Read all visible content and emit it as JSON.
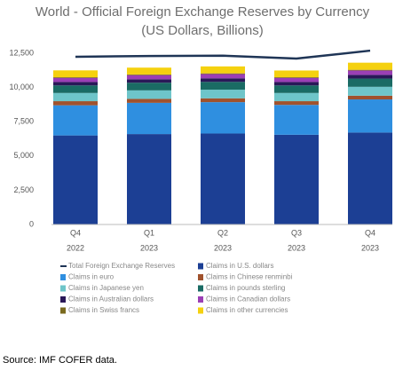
{
  "chart_data": {
    "type": "bar",
    "title": "World - Official Foreign Exchange Reserves by Currency",
    "subtitle": "(US Dollars, Billions)",
    "categories": [
      "Q4",
      "Q1",
      "Q2",
      "Q3",
      "Q4"
    ],
    "category_years": [
      "2022",
      "2023",
      "2023",
      "2023",
      "2023"
    ],
    "ylim": [
      0,
      12500
    ],
    "yticks": [
      0,
      {
        "value": 2500,
        "label": "2,500"
      },
      {
        "value": 5000,
        "label": "5,000"
      },
      {
        "value": 7500,
        "label": "7,500"
      },
      {
        "value": 10000,
        "label": "10,000"
      },
      {
        "value": 12500,
        "label": "12,500"
      }
    ],
    "line_series": {
      "name": "Total Foreign Exchange Reserves",
      "color": "#1f3556",
      "values": [
        12240,
        12300,
        12320,
        12110,
        12690
      ]
    },
    "series": [
      {
        "name": "Claims in U.S. dollars",
        "color": "#1c3f94",
        "values": [
          6500,
          6600,
          6640,
          6550,
          6710
        ]
      },
      {
        "name": "Claims in euro",
        "color": "#2f8fe0",
        "values": [
          2200,
          2280,
          2290,
          2180,
          2420
        ]
      },
      {
        "name": "Claims in Chinese renminbi",
        "color": "#a0522d",
        "values": [
          300,
          290,
          280,
          270,
          270
        ]
      },
      {
        "name": "Claims in Japanese yen",
        "color": "#6ec5c9",
        "values": [
          600,
          620,
          630,
          600,
          650
        ]
      },
      {
        "name": "Claims in pounds sterling",
        "color": "#1a6b64",
        "values": [
          550,
          560,
          570,
          550,
          600
        ]
      },
      {
        "name": "Claims in Australian dollars",
        "color": "#2a1858",
        "values": [
          250,
          250,
          260,
          250,
          270
        ]
      },
      {
        "name": "Claims in Canadian dollars",
        "color": "#9b3fb5",
        "values": [
          300,
          300,
          310,
          300,
          320
        ]
      },
      {
        "name": "Claims in Swiss francs",
        "color": "#7a6a1e",
        "values": [
          50,
          50,
          50,
          50,
          50
        ]
      },
      {
        "name": "Claims in other currencies",
        "color": "#f5d10f",
        "values": [
          500,
          500,
          510,
          490,
          520
        ]
      }
    ],
    "source": "Source: IMF COFER data."
  }
}
